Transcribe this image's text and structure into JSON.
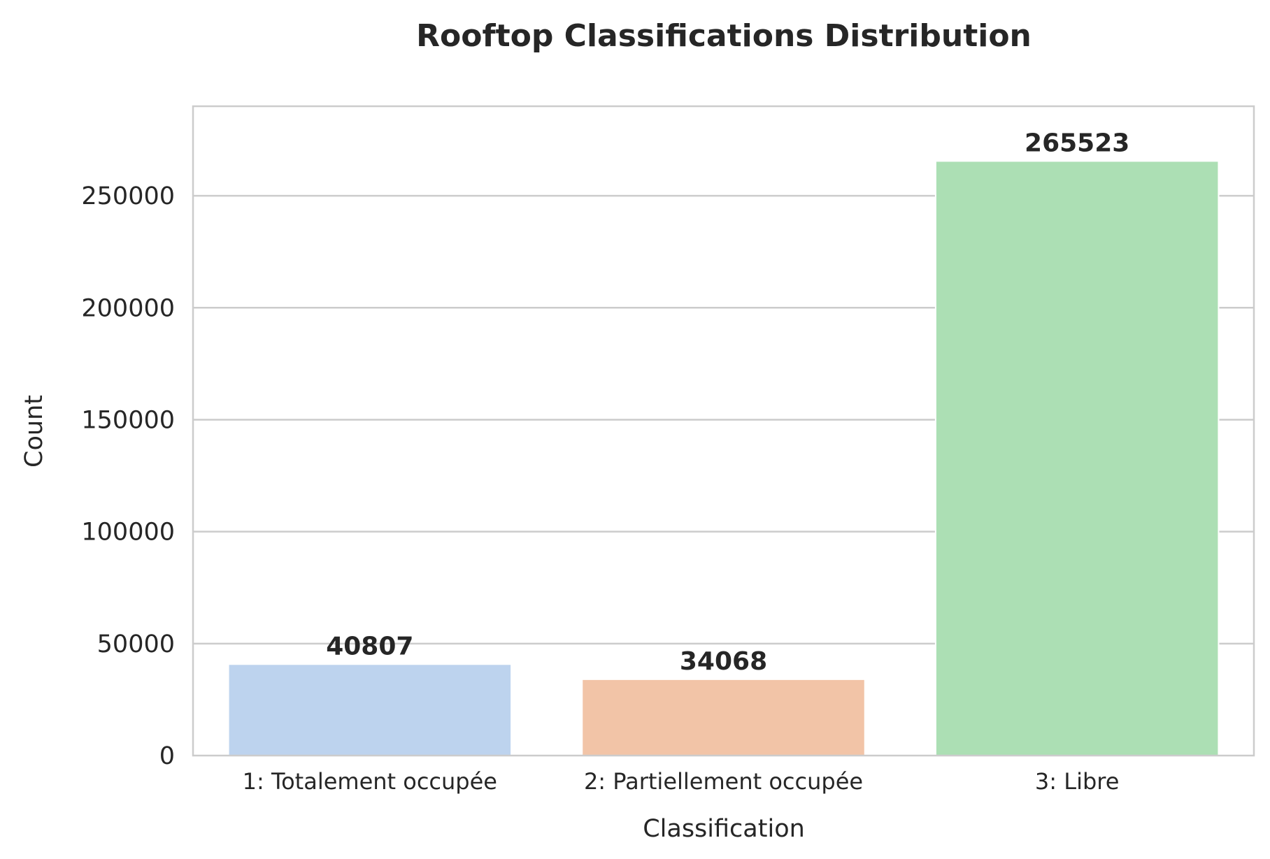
{
  "chart_data": {
    "type": "bar",
    "title": "Rooftop Classifications Distribution",
    "xlabel": "Classification",
    "ylabel": "Count",
    "categories": [
      "1: Totalement occupée",
      "2: Partiellement occupée",
      "3: Libre"
    ],
    "values": [
      40807,
      34068,
      265523
    ],
    "value_labels": [
      "40807",
      "34068",
      "265523"
    ],
    "colors": [
      "#bdd3ee",
      "#f2c4a7",
      "#acdfb4"
    ],
    "ylim": [
      0,
      290000
    ],
    "yticks": [
      0,
      50000,
      100000,
      150000,
      200000,
      250000
    ],
    "ytick_labels": [
      "0",
      "50000",
      "100000",
      "150000",
      "200000",
      "250000"
    ],
    "grid": true,
    "grid_axis": "y",
    "legend": "none"
  }
}
